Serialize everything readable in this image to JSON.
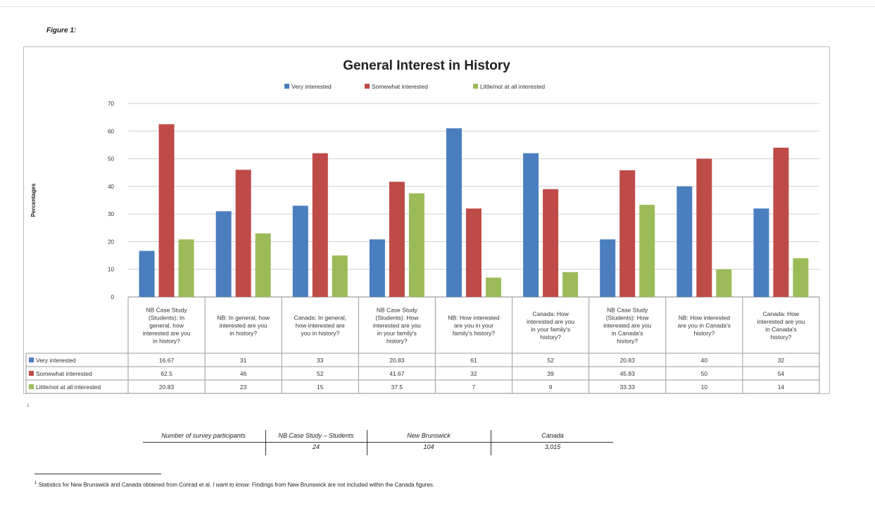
{
  "figure_label": "Figure 1:",
  "chart_data": {
    "type": "bar",
    "title": "General Interest in History",
    "ylabel": "Percentages",
    "ylim": [
      0,
      70
    ],
    "yticks": [
      0,
      10,
      20,
      30,
      40,
      50,
      60,
      70
    ],
    "grid": true,
    "legend_position": "top",
    "categories": [
      "NB Case Study (Students): In general, how interested are you in history?",
      "NB: In general, how interested are you in history?",
      "Canada: In general, how interested are you in history?",
      "NB Case Study (Students): How interested are you in your family's history?",
      "NB: How interested are you in your family's history?",
      "Canada: How interested are you in your family's history?",
      "NB Case Study (Students): How interested are you in Canada's history?",
      "NB: How interested are you in Canada's history?",
      "Canada: How interested are you in Canada's history?"
    ],
    "series": [
      {
        "name": "Very interested",
        "color": "#4a7ebf",
        "values": [
          16.67,
          31,
          33,
          20.83,
          61,
          52,
          20.83,
          40,
          32
        ]
      },
      {
        "name": "Somewhat interested",
        "color": "#be4b48",
        "values": [
          62.5,
          46,
          52,
          41.67,
          32,
          39,
          45.83,
          50,
          54
        ]
      },
      {
        "name": "Little/not at all interested",
        "color": "#9bbb59",
        "values": [
          20.83,
          23,
          15,
          37.5,
          7,
          9,
          33.33,
          10,
          14
        ]
      }
    ]
  },
  "small_mark": "1",
  "participants": {
    "label": "Number of survey participants",
    "columns": [
      {
        "name": "NB Case Study – Students",
        "count": "24"
      },
      {
        "name": "New Brunswick",
        "count": "104"
      },
      {
        "name": "Canada",
        "count": "3,015"
      }
    ]
  },
  "footnote": {
    "marker": "1",
    "before": "Statistics for New Brunswick and Canada obtained from Conrad et al. ",
    "italic": "I want to know",
    "after": ". Findings from New Brunswick are not included within the Canada figures."
  }
}
